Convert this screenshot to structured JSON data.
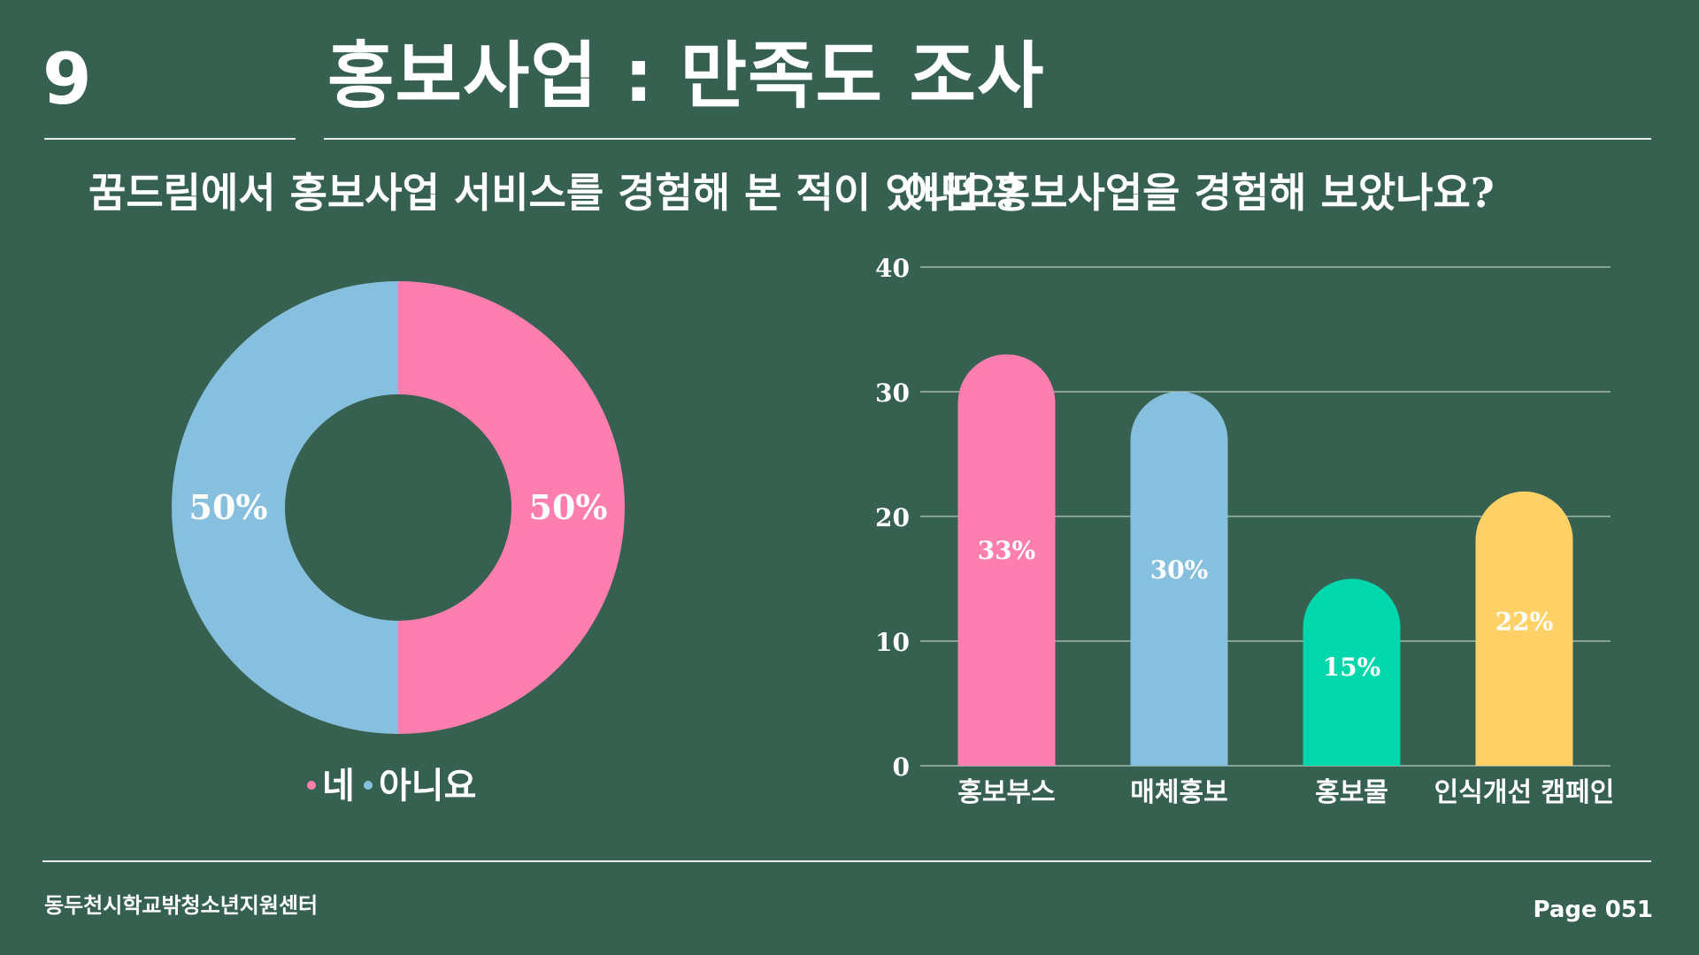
{
  "header": {
    "number": "9",
    "title": "홍보사업 : 만족도 조사"
  },
  "footer": {
    "org": "동두천시학교밖청소년지원센터",
    "page": "Page 051"
  },
  "colors": {
    "background": "#366050",
    "pink": "#FF7EB0",
    "blue": "#87BFDF",
    "green": "#00D8AB",
    "yellow": "#FFD166",
    "text": "#FFFFFF"
  },
  "chart_data": [
    {
      "type": "pie",
      "variant": "donut",
      "title": "꿈드림에서 홍보사업 서비스를 경험해 본 적이 있나요?",
      "categories": [
        "네",
        "아니요"
      ],
      "values": [
        50,
        50
      ],
      "data_labels": [
        "50%",
        "50%"
      ],
      "colors": [
        "#FF7EB0",
        "#87BFDF"
      ],
      "legend": "bottom"
    },
    {
      "type": "bar",
      "title": "어떤 홍보사업을 경험해 보았나요?",
      "categories": [
        "홍보부스",
        "매체홍보",
        "홍보물",
        "인식개선 캠페인"
      ],
      "values": [
        33,
        30,
        15,
        22
      ],
      "data_labels": [
        "33%",
        "30%",
        "15%",
        "22%"
      ],
      "colors": [
        "#FF7EB0",
        "#87BFDF",
        "#00D8AB",
        "#FFD166"
      ],
      "ylim": [
        0,
        40
      ],
      "yticks": [
        "0",
        "10",
        "20",
        "30",
        "40"
      ],
      "grid": true,
      "legend": "none"
    }
  ]
}
